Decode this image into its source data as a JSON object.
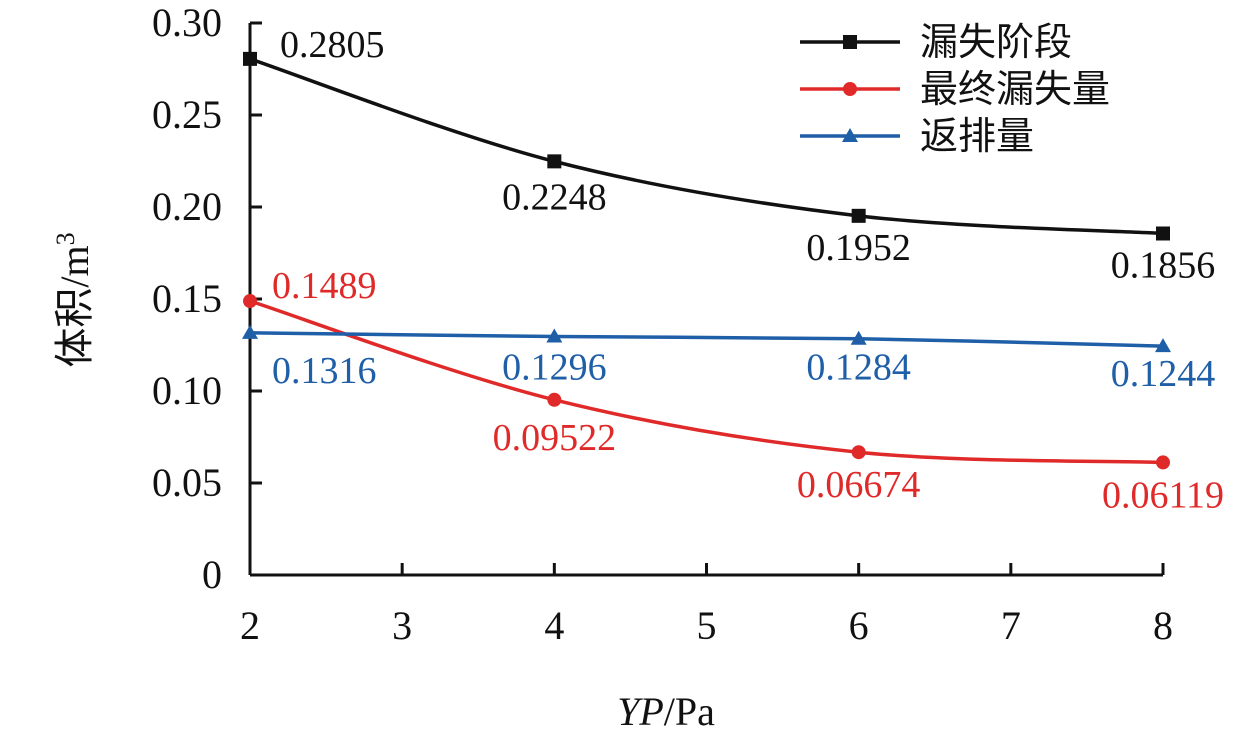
{
  "chart_data": {
    "type": "line",
    "title": "",
    "xlabel_italic": "YP",
    "xlabel_unit": "/Pa",
    "ylabel_main": "体积/m",
    "ylabel_sup": "3",
    "x": [
      2,
      4,
      6,
      8
    ],
    "xlim": [
      2,
      8
    ],
    "ylim": [
      0,
      0.3
    ],
    "x_ticks": [
      "2",
      "3",
      "4",
      "5",
      "6",
      "7",
      "8"
    ],
    "y_ticks": [
      "0",
      "0.05",
      "0.10",
      "0.15",
      "0.20",
      "0.25",
      "0.30"
    ],
    "grid": false,
    "legend_position": "top-right",
    "series": [
      {
        "name": "漏失阶段",
        "color": "#111111",
        "marker": "square",
        "values": [
          0.2805,
          0.2248,
          0.1952,
          0.1856
        ],
        "labels": [
          "0.2805",
          "0.2248",
          "0.1952",
          "0.1856"
        ]
      },
      {
        "name": "最终漏失量",
        "color": "#e02a2a",
        "marker": "circle",
        "values": [
          0.1489,
          0.09522,
          0.06674,
          0.06119
        ],
        "labels": [
          "0.1489",
          "0.09522",
          "0.06674",
          "0.06119"
        ]
      },
      {
        "name": "返排量",
        "color": "#1f5fa8",
        "marker": "triangle",
        "values": [
          0.1316,
          0.1296,
          0.1284,
          0.1244
        ],
        "labels": [
          "0.1316",
          "0.1296",
          "0.1284",
          "0.1244"
        ]
      }
    ]
  }
}
